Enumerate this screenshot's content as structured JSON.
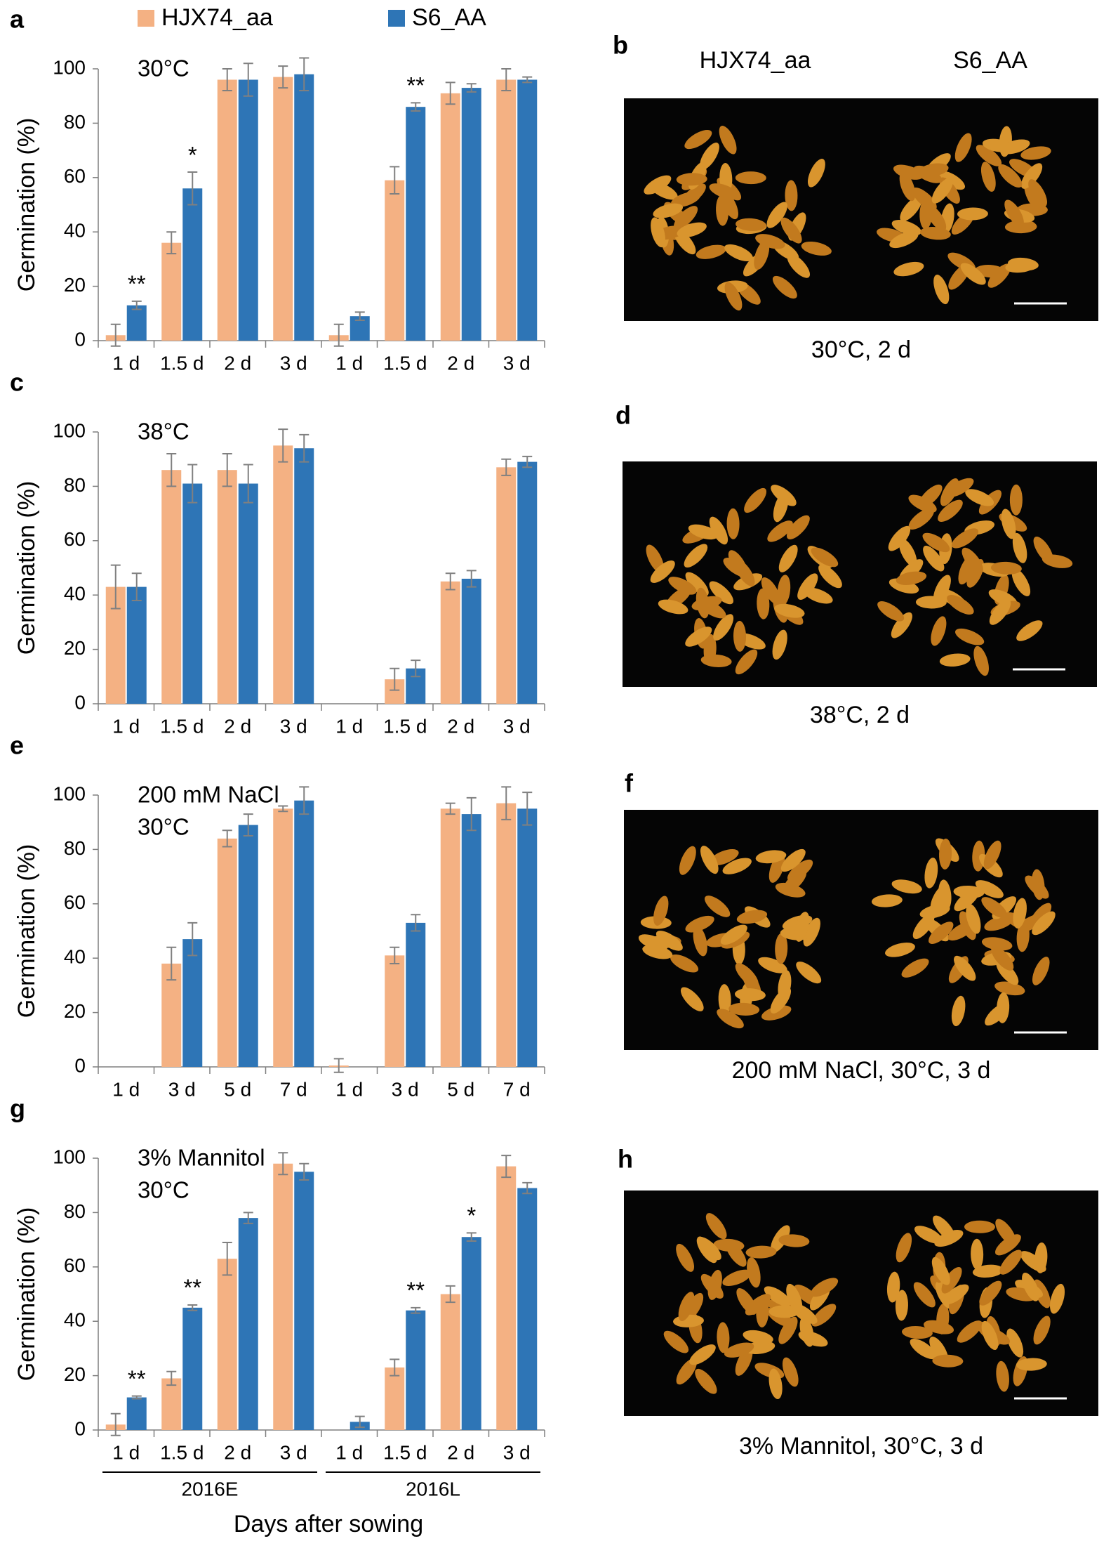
{
  "legend": [
    {
      "name": "HJX74_aa",
      "color": "#f4b183"
    },
    {
      "name": "S6_AA",
      "color": "#2e75b6"
    }
  ],
  "chart_data": [
    {
      "type": "bar",
      "panel_label": "a",
      "title_lines": [
        "30°C"
      ],
      "y_label": "Germination (%)",
      "categories": [
        "1 d",
        "1.5 d",
        "2 d",
        "3 d",
        "1 d",
        "1.5 d",
        "2 d",
        "3 d"
      ],
      "series": [
        {
          "values": [
            2,
            36,
            96,
            97,
            2,
            59,
            91,
            96
          ],
          "errors": [
            4,
            4,
            4,
            4,
            4,
            5,
            4,
            4
          ]
        },
        {
          "values": [
            13,
            56,
            96,
            98,
            9,
            86,
            93,
            96
          ],
          "errors": [
            1.5,
            6,
            6,
            6,
            1.5,
            1.5,
            1.5,
            1
          ]
        }
      ],
      "significance": [
        "**",
        "*",
        null,
        null,
        null,
        "**",
        null,
        null
      ],
      "ylim": [
        0,
        100
      ],
      "yticks": [
        0,
        20,
        40,
        60,
        80,
        100
      ]
    },
    {
      "type": "bar",
      "panel_label": "c",
      "title_lines": [
        "38°C"
      ],
      "y_label": "Germination (%)",
      "categories": [
        "1 d",
        "1.5 d",
        "2 d",
        "3 d",
        "1 d",
        "1.5 d",
        "2 d",
        "3 d"
      ],
      "series": [
        {
          "values": [
            43,
            86,
            86,
            95,
            0,
            9,
            45,
            87
          ],
          "errors": [
            8,
            6,
            6,
            6,
            0,
            4,
            3,
            3
          ]
        },
        {
          "values": [
            43,
            81,
            81,
            94,
            0,
            13,
            46,
            89
          ],
          "errors": [
            5,
            7,
            7,
            5,
            0,
            3,
            3,
            2
          ]
        }
      ],
      "ylim": [
        0,
        100
      ],
      "yticks": [
        0,
        20,
        40,
        60,
        80,
        100
      ]
    },
    {
      "type": "bar",
      "panel_label": "e",
      "title_lines": [
        "200 mM NaCl",
        "30°C"
      ],
      "y_label": "Germination (%)",
      "categories": [
        "1 d",
        "3 d",
        "5 d",
        "7 d",
        "1 d",
        "3 d",
        "5 d",
        "7 d"
      ],
      "series": [
        {
          "values": [
            0,
            38,
            84,
            95,
            0.5,
            41,
            95,
            97
          ],
          "errors": [
            0,
            6,
            3,
            1,
            2.5,
            3,
            2,
            6
          ]
        },
        {
          "values": [
            0,
            47,
            89,
            98,
            0,
            53,
            93,
            95
          ],
          "errors": [
            0,
            6,
            4,
            5,
            0,
            3,
            6,
            6
          ]
        }
      ],
      "ylim": [
        0,
        100
      ],
      "yticks": [
        0,
        20,
        40,
        60,
        80,
        100
      ]
    },
    {
      "type": "bar",
      "panel_label": "g",
      "title_lines": [
        "3% Mannitol",
        "30°C"
      ],
      "y_label": "Germination (%)",
      "x_label": "Days after sowing",
      "groups": [
        "2016E",
        "2016L"
      ],
      "categories": [
        "1 d",
        "1.5 d",
        "2 d",
        "3 d",
        "1 d",
        "1.5 d",
        "2 d",
        "3 d"
      ],
      "series": [
        {
          "values": [
            2,
            19,
            63,
            98,
            0,
            23,
            50,
            97
          ],
          "errors": [
            4,
            2.5,
            6,
            4,
            0,
            3,
            3,
            4
          ]
        },
        {
          "values": [
            12,
            45,
            78,
            95,
            3,
            44,
            71,
            89
          ],
          "errors": [
            0.5,
            1,
            2,
            3,
            2,
            1,
            1.5,
            2
          ]
        }
      ],
      "significance": [
        "**",
        "**",
        null,
        null,
        null,
        "**",
        "*",
        null
      ],
      "ylim": [
        0,
        100
      ],
      "yticks": [
        0,
        20,
        40,
        60,
        80,
        100
      ]
    }
  ],
  "photos": [
    {
      "label": "b",
      "columns": [
        "HJX74_aa",
        "S6_AA"
      ],
      "caption": "30°C, 2 d"
    },
    {
      "label": "d",
      "caption": "38°C, 2 d"
    },
    {
      "label": "f",
      "caption": "200 mM NaCl, 30°C, 3 d"
    },
    {
      "label": "h",
      "caption": "3% Mannitol, 30°C, 3 d"
    }
  ]
}
